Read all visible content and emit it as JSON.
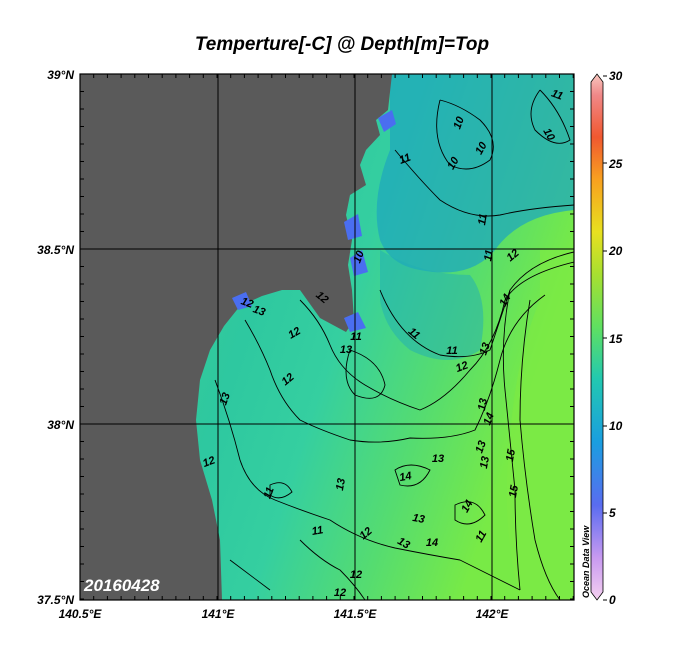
{
  "title": "Temperture[-C] @ Depth[m]=Top",
  "date_label": "20160428",
  "brand": "Ocean Data View",
  "lat_ticks": [
    "39°N",
    "38.5°N",
    "38°N",
    "37.5°N"
  ],
  "lon_ticks": [
    "140.5°E",
    "141°E",
    "141.5°E",
    "142°E"
  ],
  "colorbar": {
    "ticks": [
      "30",
      "25",
      "20",
      "15",
      "10",
      "5",
      "0"
    ],
    "range": [
      0,
      30
    ]
  },
  "contour_labels": [
    {
      "t": "11"
    },
    {
      "t": "10"
    },
    {
      "t": "10"
    },
    {
      "t": "10"
    },
    {
      "t": "10"
    },
    {
      "t": "11"
    },
    {
      "t": "11"
    },
    {
      "t": "11"
    },
    {
      "t": "12"
    },
    {
      "t": "14"
    },
    {
      "t": "10"
    },
    {
      "t": "12"
    },
    {
      "t": "13"
    },
    {
      "t": "12"
    },
    {
      "t": "11"
    },
    {
      "t": "11"
    },
    {
      "t": "12"
    },
    {
      "t": "13"
    },
    {
      "t": "11"
    },
    {
      "t": "12"
    },
    {
      "t": "12"
    },
    {
      "t": "13"
    },
    {
      "t": "13"
    },
    {
      "t": "14"
    },
    {
      "t": "13"
    },
    {
      "t": "13"
    },
    {
      "t": "15"
    },
    {
      "t": "14"
    },
    {
      "t": "15"
    },
    {
      "t": "13"
    },
    {
      "t": "12"
    },
    {
      "t": "11"
    },
    {
      "t": "13"
    },
    {
      "t": "11"
    },
    {
      "t": "12"
    },
    {
      "t": "13"
    },
    {
      "t": "13"
    },
    {
      "t": "14"
    },
    {
      "t": "14"
    },
    {
      "t": "13"
    },
    {
      "t": "11"
    },
    {
      "t": "12"
    },
    {
      "t": "12"
    }
  ],
  "colors": {
    "land": "#5a5a5a",
    "water_cold": "#1fa6b8",
    "water_mid": "#2cc9a0",
    "water_warm": "#74e848"
  }
}
